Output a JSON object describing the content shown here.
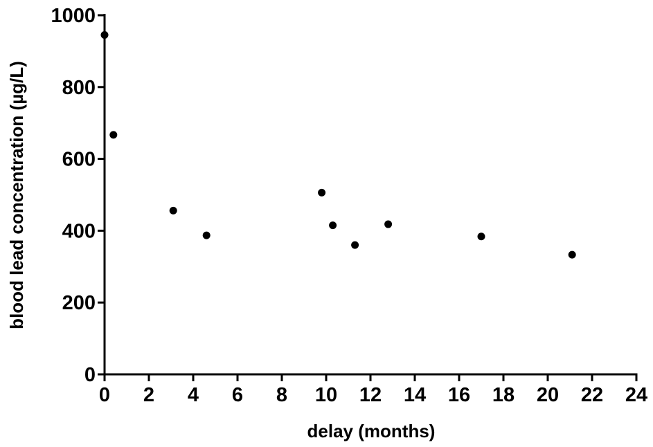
{
  "chart_data": {
    "type": "scatter",
    "title": "",
    "xlabel": "delay (months)",
    "ylabel": "blood lead concentration (µg/L)",
    "xlim": [
      0,
      24
    ],
    "ylim": [
      0,
      1000
    ],
    "x_ticks": [
      0,
      2,
      4,
      6,
      8,
      10,
      12,
      14,
      16,
      18,
      20,
      22,
      24
    ],
    "y_ticks": [
      0,
      200,
      400,
      600,
      800,
      1000
    ],
    "grid": false,
    "legend": "none",
    "colors": {
      "points": "#000000",
      "axes": "#000000"
    },
    "series": [
      {
        "x": [
          0.0,
          0.4,
          3.1,
          4.6,
          9.8,
          10.3,
          11.3,
          12.8,
          17.0,
          21.1
        ],
        "y": [
          945,
          667,
          456,
          387,
          506,
          415,
          360,
          418,
          384,
          333
        ]
      }
    ]
  }
}
